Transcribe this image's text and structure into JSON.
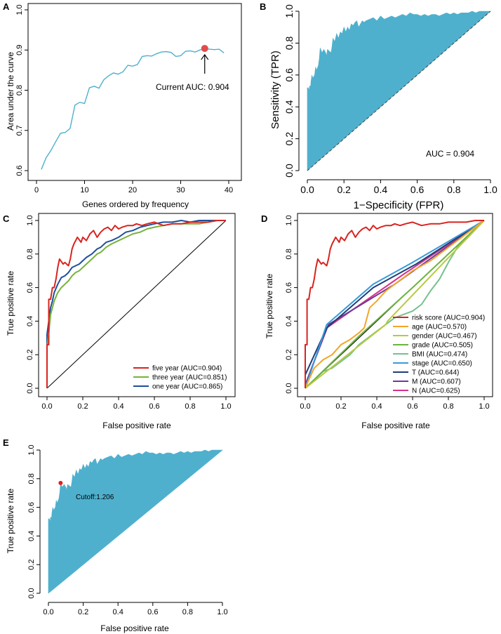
{
  "chart_data": [
    {
      "panel": "A",
      "type": "line",
      "xlabel": "Genes ordered by frequency",
      "ylabel": "Area under the curve",
      "xlim": [
        0,
        40
      ],
      "ylim": [
        0.6,
        1.0
      ],
      "xticks": [
        0,
        10,
        20,
        30,
        40
      ],
      "yticks": [
        0.6,
        0.7,
        0.8,
        0.9,
        1.0
      ],
      "series": [
        {
          "name": "AUC",
          "color": "#4fb0cd",
          "x": [
            1,
            2,
            3,
            4,
            5,
            6,
            7,
            8,
            9,
            10,
            11,
            12,
            13,
            14,
            15,
            16,
            17,
            18,
            19,
            20,
            21,
            22,
            23,
            24,
            25,
            26,
            27,
            28,
            29,
            30,
            31,
            32,
            33,
            34,
            35,
            36,
            37,
            38,
            39
          ],
          "y": [
            0.603,
            0.632,
            0.65,
            0.672,
            0.693,
            0.695,
            0.705,
            0.763,
            0.77,
            0.767,
            0.806,
            0.81,
            0.805,
            0.826,
            0.836,
            0.843,
            0.84,
            0.846,
            0.862,
            0.86,
            0.864,
            0.884,
            0.886,
            0.885,
            0.891,
            0.895,
            0.896,
            0.894,
            0.884,
            0.886,
            0.897,
            0.898,
            0.895,
            0.9,
            0.904,
            0.902,
            0.901,
            0.902,
            0.893
          ]
        }
      ],
      "highlight": {
        "x": 35,
        "y": 0.904,
        "color": "#e04c4c"
      },
      "annotation": "Current AUC: 0.904"
    },
    {
      "panel": "B",
      "type": "area",
      "xlabel": "1−Specificity (FPR)",
      "ylabel": "Sensitivity (TPR)",
      "xlim": [
        0,
        1
      ],
      "ylim": [
        0,
        1
      ],
      "xticks": [
        0.0,
        0.2,
        0.4,
        0.6,
        0.8,
        1.0
      ],
      "yticks": [
        0.0,
        0.2,
        0.4,
        0.6,
        0.8,
        1.0
      ],
      "fill_color": "#4fb0cd",
      "annotation": "AUC = 0.904"
    },
    {
      "panel": "C",
      "type": "line",
      "xlabel": "False positive rate",
      "ylabel": "True positive rate",
      "xlim": [
        0,
        1
      ],
      "ylim": [
        0,
        1
      ],
      "xticks": [
        0.0,
        0.2,
        0.4,
        0.6,
        0.8,
        1.0
      ],
      "yticks": [
        0.0,
        0.2,
        0.4,
        0.6,
        0.8,
        1.0
      ],
      "series": [
        {
          "name": "five year (AUC=0.904)",
          "color": "#d9231f",
          "x": [
            0,
            0,
            0.01,
            0.01,
            0.02,
            0.03,
            0.04,
            0.05,
            0.06,
            0.07,
            0.09,
            0.1,
            0.12,
            0.13,
            0.14,
            0.15,
            0.17,
            0.19,
            0.2,
            0.22,
            0.24,
            0.26,
            0.28,
            0.3,
            0.32,
            0.34,
            0.36,
            0.38,
            0.4,
            0.42,
            0.45,
            0.48,
            0.5,
            0.53,
            0.56,
            0.6,
            0.65,
            0.7,
            0.75,
            0.8,
            0.85,
            0.9,
            0.95,
            1.0
          ],
          "y": [
            0,
            0.26,
            0.26,
            0.53,
            0.53,
            0.6,
            0.6,
            0.65,
            0.72,
            0.77,
            0.74,
            0.75,
            0.73,
            0.77,
            0.83,
            0.86,
            0.9,
            0.87,
            0.9,
            0.88,
            0.92,
            0.94,
            0.9,
            0.93,
            0.95,
            0.96,
            0.94,
            0.97,
            0.95,
            0.96,
            0.97,
            0.97,
            0.98,
            0.97,
            0.98,
            0.99,
            0.97,
            0.98,
            0.98,
            0.99,
            0.99,
            0.99,
            1.0,
            1.0
          ]
        },
        {
          "name": "three year (AUC=0.851)",
          "color": "#76b33a",
          "x": [
            0,
            0,
            0.01,
            0.02,
            0.03,
            0.04,
            0.06,
            0.08,
            0.1,
            0.12,
            0.14,
            0.16,
            0.18,
            0.2,
            0.22,
            0.25,
            0.28,
            0.3,
            0.33,
            0.36,
            0.4,
            0.44,
            0.48,
            0.52,
            0.56,
            0.6,
            0.65,
            0.7,
            0.75,
            0.8,
            0.85,
            0.9,
            0.95,
            1.0
          ],
          "y": [
            0,
            0.25,
            0.33,
            0.44,
            0.48,
            0.52,
            0.57,
            0.6,
            0.62,
            0.64,
            0.67,
            0.69,
            0.7,
            0.72,
            0.74,
            0.77,
            0.8,
            0.81,
            0.84,
            0.86,
            0.88,
            0.9,
            0.92,
            0.93,
            0.95,
            0.96,
            0.97,
            0.98,
            0.98,
            0.98,
            0.98,
            0.99,
            1.0,
            1.0
          ]
        },
        {
          "name": "one year (AUC=0.865)",
          "color": "#1f4f9c",
          "x": [
            0,
            0,
            0.01,
            0.02,
            0.03,
            0.04,
            0.06,
            0.08,
            0.1,
            0.12,
            0.14,
            0.16,
            0.18,
            0.2,
            0.22,
            0.25,
            0.28,
            0.3,
            0.33,
            0.36,
            0.4,
            0.44,
            0.48,
            0.52,
            0.56,
            0.6,
            0.65,
            0.7,
            0.75,
            0.8,
            0.85,
            0.9,
            0.95,
            1.0
          ],
          "y": [
            0,
            0.32,
            0.4,
            0.48,
            0.52,
            0.57,
            0.62,
            0.66,
            0.67,
            0.69,
            0.72,
            0.73,
            0.74,
            0.76,
            0.78,
            0.8,
            0.83,
            0.84,
            0.87,
            0.88,
            0.9,
            0.93,
            0.94,
            0.96,
            0.97,
            0.98,
            0.99,
            0.99,
            1.0,
            0.99,
            1.0,
            1.0,
            1.0,
            1.0
          ]
        }
      ]
    },
    {
      "panel": "D",
      "type": "line",
      "xlabel": "False positive rate",
      "ylabel": "True positive rate",
      "xlim": [
        0,
        1
      ],
      "ylim": [
        0,
        1
      ],
      "xticks": [
        0.0,
        0.2,
        0.4,
        0.6,
        0.8,
        1.0
      ],
      "yticks": [
        0.0,
        0.2,
        0.4,
        0.6,
        0.8,
        1.0
      ],
      "series": [
        {
          "name": "risk score (AUC=0.904)",
          "color": "#d9231f",
          "x": [
            0,
            0,
            0.01,
            0.01,
            0.02,
            0.03,
            0.04,
            0.05,
            0.06,
            0.07,
            0.09,
            0.1,
            0.12,
            0.13,
            0.14,
            0.15,
            0.17,
            0.19,
            0.2,
            0.22,
            0.24,
            0.26,
            0.28,
            0.3,
            0.32,
            0.34,
            0.36,
            0.38,
            0.4,
            0.42,
            0.45,
            0.48,
            0.5,
            0.53,
            0.56,
            0.6,
            0.65,
            0.7,
            0.75,
            0.8,
            0.85,
            0.9,
            0.95,
            1.0
          ],
          "y": [
            0,
            0.26,
            0.26,
            0.53,
            0.53,
            0.6,
            0.6,
            0.65,
            0.72,
            0.77,
            0.74,
            0.75,
            0.73,
            0.77,
            0.83,
            0.86,
            0.9,
            0.87,
            0.9,
            0.88,
            0.92,
            0.94,
            0.9,
            0.93,
            0.95,
            0.96,
            0.94,
            0.97,
            0.95,
            0.96,
            0.97,
            0.97,
            0.98,
            0.97,
            0.98,
            0.99,
            0.97,
            0.98,
            0.98,
            0.99,
            0.99,
            0.99,
            1.0,
            1.0
          ]
        },
        {
          "name": "age (AUC=0.570)",
          "color": "#f2a52b",
          "x": [
            0,
            0.02,
            0.05,
            0.1,
            0.15,
            0.2,
            0.25,
            0.3,
            0.33,
            0.36,
            0.4,
            0.45,
            0.5,
            0.55,
            0.6,
            0.65,
            0.7,
            0.75,
            0.8,
            0.85,
            0.9,
            0.95,
            1.0
          ],
          "y": [
            0,
            0.05,
            0.12,
            0.17,
            0.2,
            0.26,
            0.29,
            0.33,
            0.36,
            0.48,
            0.52,
            0.58,
            0.62,
            0.66,
            0.7,
            0.73,
            0.76,
            0.8,
            0.84,
            0.88,
            0.92,
            0.96,
            1.0
          ]
        },
        {
          "name": "gender (AUC=0.467)",
          "color": "#b8c940",
          "x": [
            0,
            0.45,
            0.46,
            1.0
          ],
          "y": [
            0,
            0.38,
            0.4,
            1.0
          ]
        },
        {
          "name": "grade (AUC=0.505)",
          "color": "#6db33f",
          "x": [
            0,
            0.3,
            0.6,
            1.0
          ],
          "y": [
            0,
            0.31,
            0.6,
            1.0
          ]
        },
        {
          "name": "BMI (AUC=0.474)",
          "color": "#76c08f",
          "x": [
            0,
            0.05,
            0.1,
            0.15,
            0.2,
            0.25,
            0.3,
            0.35,
            0.4,
            0.45,
            0.5,
            0.55,
            0.6,
            0.65,
            0.7,
            0.75,
            0.8,
            0.85,
            0.9,
            0.95,
            1.0
          ],
          "y": [
            0,
            0.05,
            0.1,
            0.12,
            0.16,
            0.2,
            0.26,
            0.3,
            0.34,
            0.38,
            0.42,
            0.44,
            0.46,
            0.5,
            0.58,
            0.65,
            0.75,
            0.84,
            0.9,
            0.95,
            1.0
          ]
        },
        {
          "name": "stage (AUC=0.650)",
          "color": "#3a9bd6",
          "x": [
            0,
            0.12,
            0.38,
            0.6,
            1.0
          ],
          "y": [
            0,
            0.38,
            0.62,
            0.75,
            1.0
          ]
        },
        {
          "name": "T (AUC=0.644)",
          "color": "#1f3e7a",
          "x": [
            0,
            0.12,
            0.38,
            0.62,
            1.0
          ],
          "y": [
            0.08,
            0.36,
            0.6,
            0.74,
            1.0
          ]
        },
        {
          "name": "M (AUC=0.607)",
          "color": "#6b3a99",
          "x": [
            0,
            0.13,
            0.5,
            1.0
          ],
          "y": [
            0.02,
            0.38,
            0.62,
            1.0
          ]
        },
        {
          "name": "N (AUC=0.625)",
          "color": "#d6338a",
          "x": [
            0,
            0.12,
            0.55,
            1.0
          ],
          "y": [
            0.02,
            0.36,
            0.68,
            1.0
          ]
        }
      ]
    },
    {
      "panel": "E",
      "type": "area",
      "xlabel": "False positive rate",
      "ylabel": "True positive rate",
      "xlim": [
        0,
        1
      ],
      "ylim": [
        0,
        1
      ],
      "xticks": [
        0.0,
        0.2,
        0.4,
        0.6,
        0.8,
        1.0
      ],
      "yticks": [
        0.0,
        0.2,
        0.4,
        0.6,
        0.8,
        1.0
      ],
      "fill_color": "#4fb0cd",
      "cutoff_point": {
        "x": 0.07,
        "y": 0.77,
        "color": "#e02020"
      },
      "annotation": "Cutoff:1.206"
    }
  ],
  "roc_curve": {
    "x": [
      0,
      0,
      0.005,
      0.01,
      0.012,
      0.018,
      0.02,
      0.025,
      0.03,
      0.04,
      0.045,
      0.05,
      0.06,
      0.065,
      0.07,
      0.08,
      0.09,
      0.1,
      0.105,
      0.11,
      0.12,
      0.13,
      0.135,
      0.14,
      0.15,
      0.16,
      0.17,
      0.18,
      0.19,
      0.2,
      0.21,
      0.22,
      0.23,
      0.24,
      0.25,
      0.26,
      0.27,
      0.28,
      0.29,
      0.3,
      0.31,
      0.32,
      0.34,
      0.36,
      0.38,
      0.4,
      0.42,
      0.44,
      0.46,
      0.48,
      0.5,
      0.52,
      0.54,
      0.56,
      0.58,
      0.6,
      0.62,
      0.64,
      0.66,
      0.68,
      0.7,
      0.72,
      0.74,
      0.76,
      0.78,
      0.8,
      0.82,
      0.84,
      0.86,
      0.88,
      0.9,
      0.92,
      0.94,
      0.96,
      0.98,
      1.0
    ],
    "y": [
      0,
      0.52,
      0.52,
      0.5,
      0.53,
      0.53,
      0.56,
      0.6,
      0.58,
      0.6,
      0.65,
      0.63,
      0.66,
      0.7,
      0.77,
      0.74,
      0.76,
      0.74,
      0.72,
      0.76,
      0.75,
      0.74,
      0.78,
      0.83,
      0.81,
      0.86,
      0.83,
      0.87,
      0.86,
      0.9,
      0.87,
      0.9,
      0.88,
      0.92,
      0.91,
      0.93,
      0.94,
      0.9,
      0.92,
      0.94,
      0.93,
      0.94,
      0.95,
      0.96,
      0.94,
      0.97,
      0.95,
      0.96,
      0.97,
      0.96,
      0.97,
      0.98,
      0.97,
      0.99,
      0.98,
      0.98,
      0.97,
      0.98,
      0.97,
      0.98,
      0.98,
      0.97,
      0.98,
      0.99,
      0.98,
      0.99,
      0.98,
      0.99,
      0.99,
      0.99,
      1.0,
      0.99,
      1.0,
      1.0,
      1.0,
      1.0
    ]
  },
  "labels": {
    "a": "A",
    "b": "B",
    "c": "C",
    "d": "D",
    "e": "E"
  },
  "tick_labels": {
    "a_x": [
      "0",
      "10",
      "20",
      "30",
      "40"
    ],
    "a_y": [
      "0.6",
      "0.7",
      "0.8",
      "0.9",
      "1.0"
    ],
    "roc": [
      "0.0",
      "0.2",
      "0.4",
      "0.6",
      "0.8",
      "1.0"
    ]
  }
}
